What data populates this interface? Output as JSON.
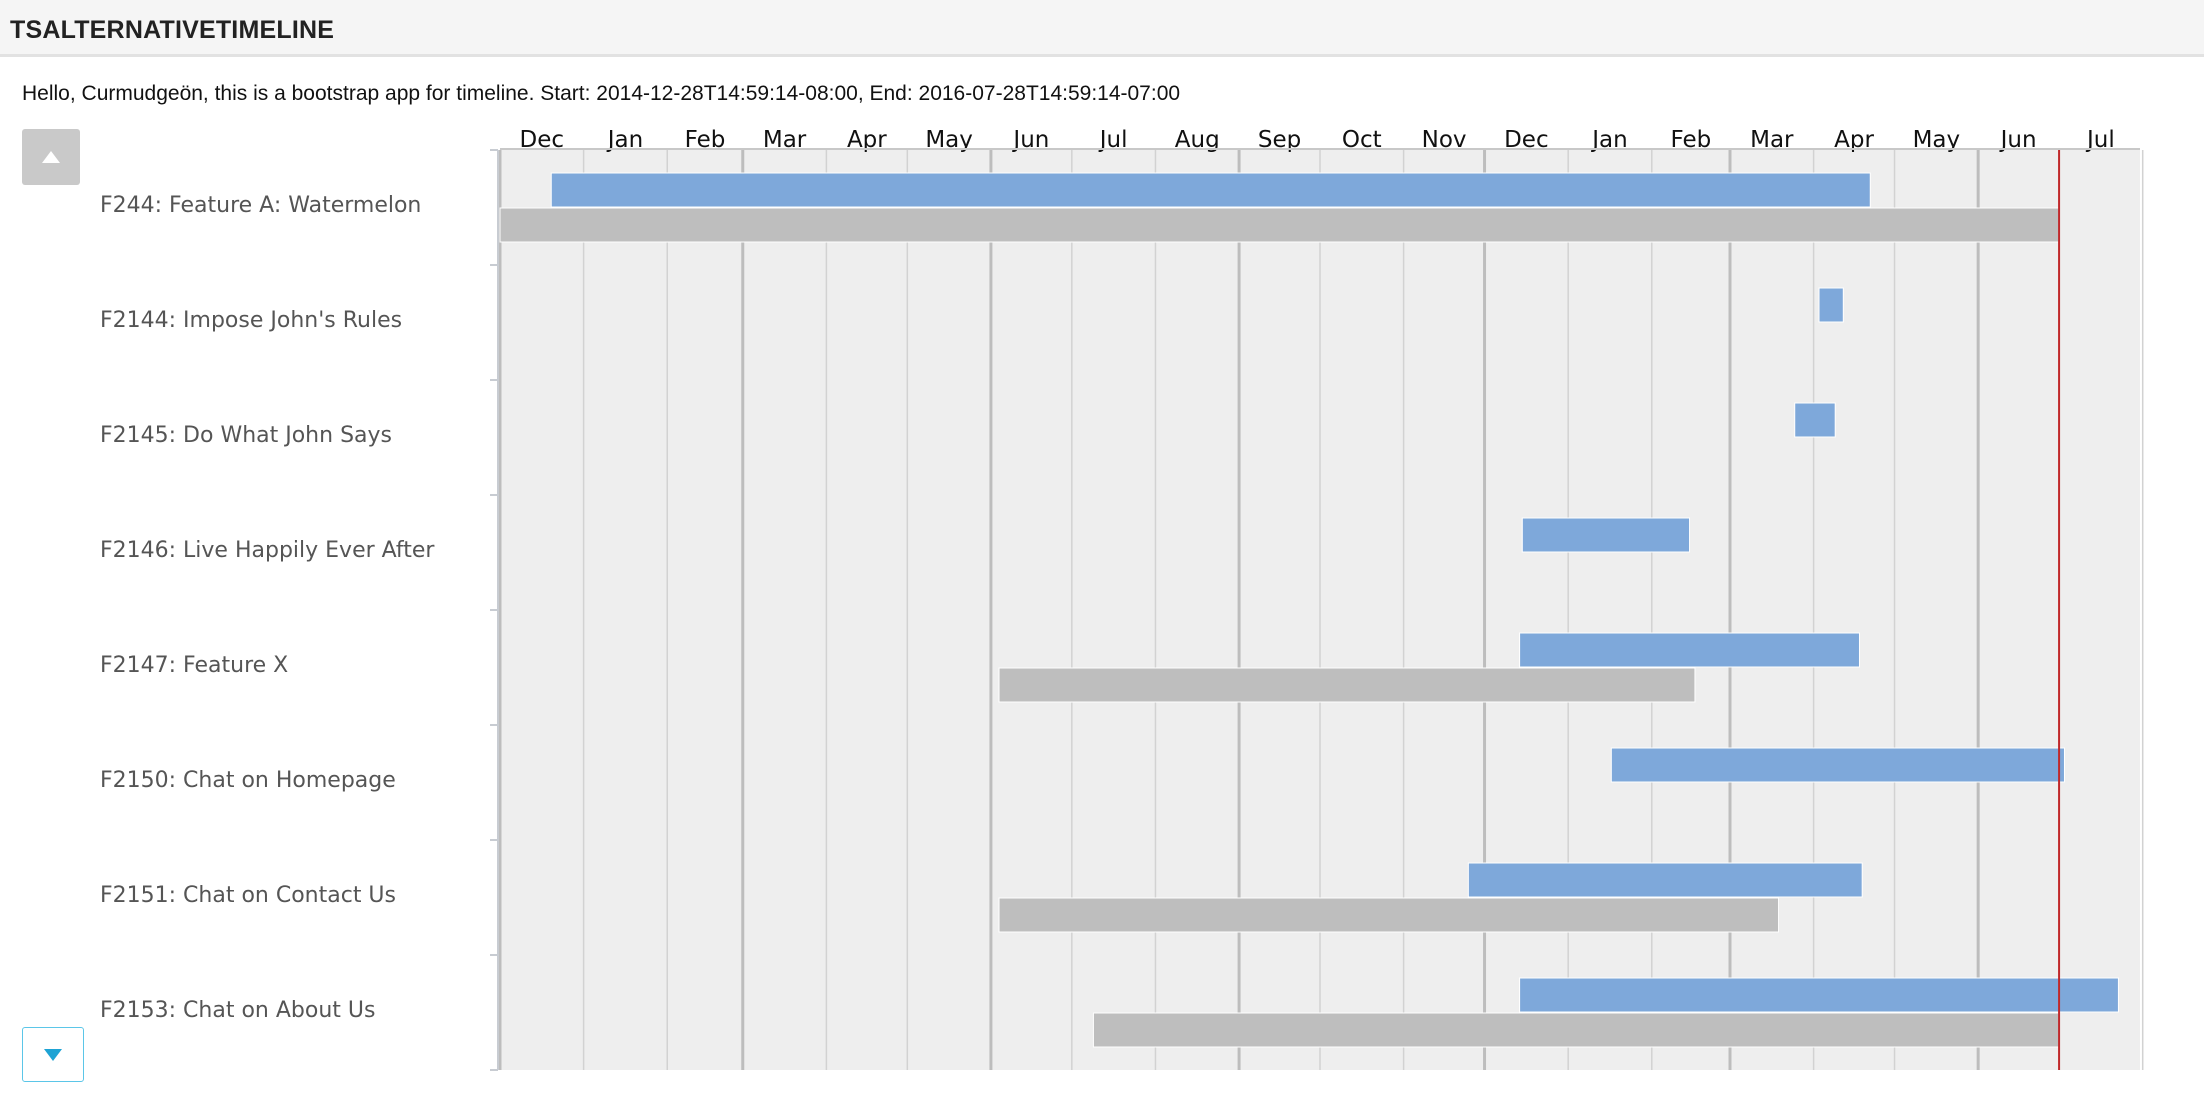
{
  "app": {
    "title": "TSALTERNATIVETIMELINE",
    "greeting": "Hello, Curmudgeön, this is a bootstrap app for timeline. Start: 2014-12-28T14:59:14-08:00, End: 2016-07-28T14:59:14-07:00"
  },
  "controls": {
    "scroll_up_icon": "triangle-up-icon",
    "scroll_down_icon": "triangle-down-icon"
  },
  "colors": {
    "plan_bar": "#7ea8da",
    "actual_bar": "#bebebe",
    "grid_bg": "#eeeeee",
    "today_line": "#c0282a"
  },
  "chart_data": {
    "type": "gantt",
    "months": [
      "Dec",
      "Jan",
      "Feb",
      "Mar",
      "Apr",
      "May",
      "Jun",
      "Jul",
      "Aug",
      "Sep",
      "Oct",
      "Nov",
      "Dec",
      "Jan",
      "Feb",
      "Mar",
      "Apr",
      "May",
      "Jun",
      "Jul"
    ],
    "x_range": [
      "2014-12-01",
      "2016-07-31"
    ],
    "today": "2016-07-01",
    "rows": [
      {
        "label": "F244: Feature A: Watermelon",
        "plan": [
          "2014-12-20",
          "2016-04-22"
        ],
        "actual": [
          "2014-12-01",
          "2016-07-01"
        ]
      },
      {
        "label": "F2144: Impose John's Rules",
        "plan": [
          "2016-04-03",
          "2016-04-12"
        ],
        "actual": null
      },
      {
        "label": "F2145: Do What John Says",
        "plan": [
          "2016-03-25",
          "2016-04-09"
        ],
        "actual": null
      },
      {
        "label": "F2146: Live Happily Ever After",
        "plan": [
          "2015-12-15",
          "2016-02-15"
        ],
        "actual": null
      },
      {
        "label": "F2147: Feature X",
        "plan": [
          "2015-12-14",
          "2016-04-18"
        ],
        "actual": [
          "2015-06-04",
          "2016-02-17"
        ]
      },
      {
        "label": "F2150: Chat on Homepage",
        "plan": [
          "2016-01-17",
          "2016-07-03"
        ],
        "actual": null
      },
      {
        "label": "F2151: Chat on Contact Us",
        "plan": [
          "2015-11-25",
          "2016-04-19"
        ],
        "actual": [
          "2015-06-04",
          "2016-03-19"
        ]
      },
      {
        "label": "F2153: Chat on About Us",
        "plan": [
          "2015-12-14",
          "2016-07-23"
        ],
        "actual": [
          "2015-07-09",
          "2016-07-01"
        ]
      }
    ]
  }
}
